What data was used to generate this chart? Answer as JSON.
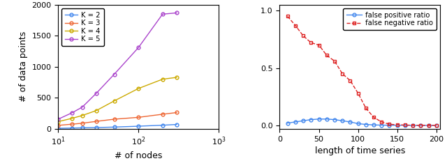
{
  "left": {
    "xlabel": "# of nodes",
    "ylabel": "# of data points",
    "ylim": [
      0,
      2000
    ],
    "yticks": [
      0,
      500,
      1000,
      1500,
      2000
    ],
    "series": [
      {
        "label": "K = 2",
        "color": "#4488ee",
        "x": [
          10,
          15,
          20,
          30,
          50,
          100,
          200,
          300
        ],
        "y": [
          8,
          12,
          16,
          20,
          28,
          42,
          58,
          70
        ]
      },
      {
        "label": "K = 3",
        "color": "#ee6633",
        "x": [
          10,
          15,
          20,
          30,
          50,
          100,
          200,
          300
        ],
        "y": [
          55,
          75,
          90,
          120,
          155,
          185,
          235,
          262
        ]
      },
      {
        "label": "K = 4",
        "color": "#ccaa00",
        "x": [
          10,
          15,
          20,
          30,
          50,
          100,
          200,
          300
        ],
        "y": [
          115,
          170,
          215,
          295,
          450,
          650,
          800,
          830
        ]
      },
      {
        "label": "K = 5",
        "color": "#aa44cc",
        "x": [
          10,
          15,
          20,
          30,
          50,
          100,
          200,
          300
        ],
        "y": [
          155,
          260,
          350,
          575,
          880,
          1310,
          1850,
          1870
        ]
      }
    ]
  },
  "right": {
    "xlabel": "length of time series",
    "xlim": [
      0,
      205
    ],
    "ylim": [
      -0.03,
      1.05
    ],
    "yticks": [
      0,
      0.5,
      1
    ],
    "xticks": [
      0,
      50,
      100,
      150,
      200
    ],
    "fp_series": {
      "label": "false positive ratio",
      "color": "#4488ee",
      "marker": "o",
      "linestyle": "-",
      "x": [
        10,
        20,
        30,
        40,
        50,
        60,
        70,
        80,
        90,
        100,
        110,
        120,
        130,
        140,
        150,
        160,
        170,
        180,
        190,
        200
      ],
      "y": [
        0.02,
        0.03,
        0.04,
        0.05,
        0.055,
        0.055,
        0.05,
        0.04,
        0.03,
        0.015,
        0.008,
        0.004,
        0.002,
        0.001,
        0.001,
        0.001,
        0.0,
        0.0,
        0.0,
        0.0
      ]
    },
    "fn_series": {
      "label": "false negative ratio",
      "color": "#dd2222",
      "marker": "s",
      "linestyle": "--",
      "x": [
        10,
        20,
        30,
        40,
        50,
        60,
        70,
        80,
        90,
        100,
        110,
        120,
        130,
        140,
        150,
        160,
        170,
        180,
        190,
        200
      ],
      "y": [
        0.95,
        0.87,
        0.78,
        0.72,
        0.7,
        0.61,
        0.56,
        0.45,
        0.39,
        0.28,
        0.15,
        0.07,
        0.03,
        0.01,
        0.005,
        0.003,
        0.001,
        0.001,
        0.0,
        0.0
      ]
    }
  }
}
